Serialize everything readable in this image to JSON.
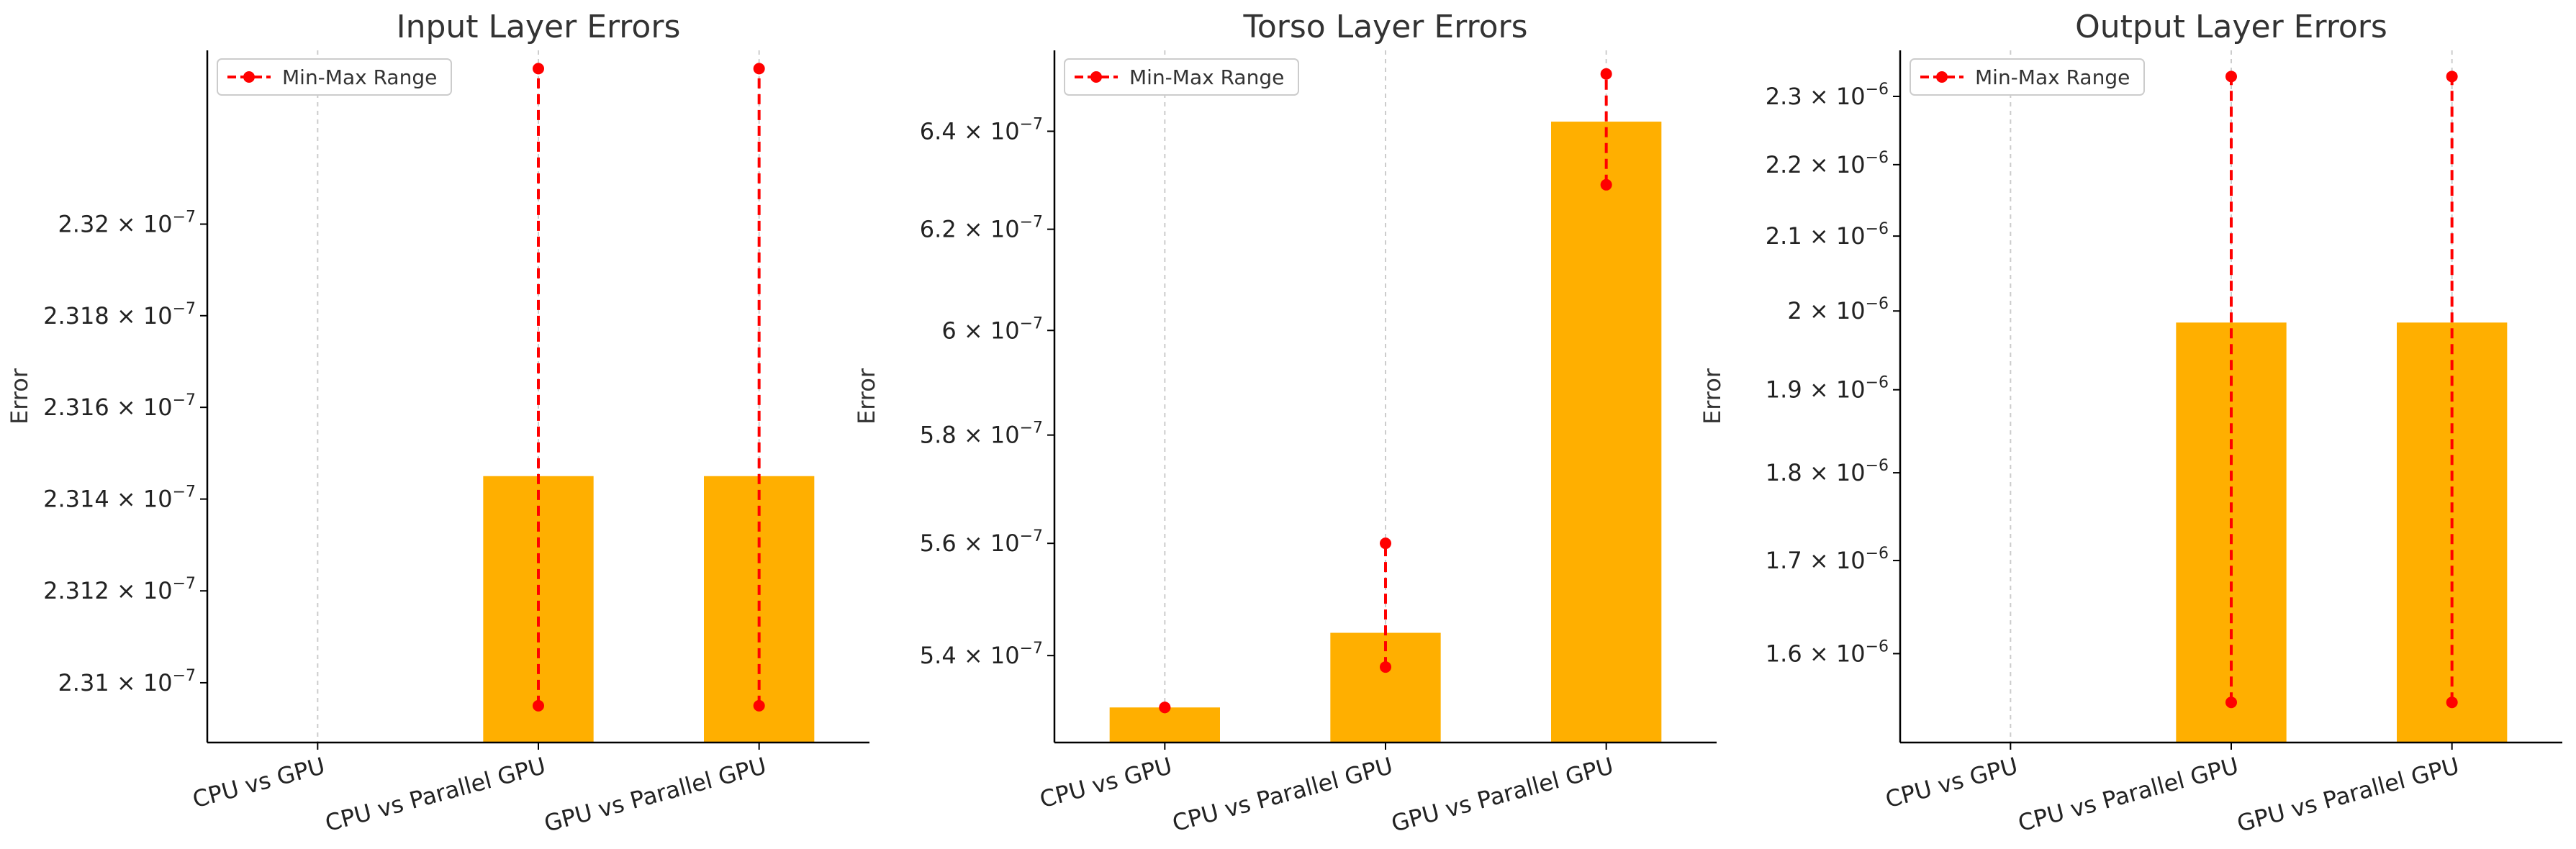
{
  "chart_data": [
    {
      "type": "bar",
      "title": "Input Layer Errors",
      "ylabel": "Error",
      "categories": [
        "CPU vs GPU",
        "CPU vs Parallel GPU",
        "GPU vs Parallel GPU"
      ],
      "values": [
        null,
        2.3145e-07,
        2.3145e-07
      ],
      "range": [
        null,
        [
          2.3095e-07,
          2.3234e-07
        ],
        [
          2.3095e-07,
          2.3234e-07
        ]
      ],
      "yscale": "log",
      "ylim": [
        2.3087e-07,
        2.3238e-07
      ],
      "yticks": [
        {
          "value": 2.31e-07,
          "mantissa": "2.31",
          "exponent": "−7"
        },
        {
          "value": 2.312e-07,
          "mantissa": "2.312",
          "exponent": "−7"
        },
        {
          "value": 2.314e-07,
          "mantissa": "2.314",
          "exponent": "−7"
        },
        {
          "value": 2.316e-07,
          "mantissa": "2.316",
          "exponent": "−7"
        },
        {
          "value": 2.318e-07,
          "mantissa": "2.318",
          "exponent": "−7"
        },
        {
          "value": 2.32e-07,
          "mantissa": "2.32",
          "exponent": "−7"
        }
      ],
      "legend": {
        "label": "Min-Max Range",
        "position": "upper-left"
      },
      "grid": "vertical-dashed"
    },
    {
      "type": "bar",
      "title": "Torso Layer Errors",
      "ylabel": "Error",
      "categories": [
        "CPU vs GPU",
        "CPU vs Parallel GPU",
        "GPU vs Parallel GPU"
      ],
      "values": [
        5.31e-07,
        5.44e-07,
        6.42e-07
      ],
      "range": [
        [
          5.31e-07,
          5.31e-07
        ],
        [
          5.38e-07,
          5.6e-07
        ],
        [
          6.29e-07,
          6.52e-07
        ]
      ],
      "yscale": "log",
      "ylim": [
        5.25e-07,
        6.57e-07
      ],
      "yticks": [
        {
          "value": 5.4e-07,
          "mantissa": "5.4",
          "exponent": "−7"
        },
        {
          "value": 5.6e-07,
          "mantissa": "5.6",
          "exponent": "−7"
        },
        {
          "value": 5.8e-07,
          "mantissa": "5.8",
          "exponent": "−7"
        },
        {
          "value": 6e-07,
          "mantissa": "6",
          "exponent": "−7"
        },
        {
          "value": 6.2e-07,
          "mantissa": "6.2",
          "exponent": "−7"
        },
        {
          "value": 6.4e-07,
          "mantissa": "6.4",
          "exponent": "−7"
        }
      ],
      "legend": {
        "label": "Min-Max Range",
        "position": "upper-left"
      },
      "grid": "vertical-dashed"
    },
    {
      "type": "bar",
      "title": "Output Layer Errors",
      "ylabel": "Error",
      "categories": [
        "CPU vs GPU",
        "CPU vs Parallel GPU",
        "GPU vs Parallel GPU"
      ],
      "values": [
        null,
        1.985e-06,
        1.985e-06
      ],
      "range": [
        null,
        [
          1.55e-06,
          2.33e-06
        ],
        [
          1.55e-06,
          2.33e-06
        ]
      ],
      "yscale": "log",
      "ylim": [
        1.51e-06,
        2.37e-06
      ],
      "yticks": [
        {
          "value": 1.6e-06,
          "mantissa": "1.6",
          "exponent": "−6"
        },
        {
          "value": 1.7e-06,
          "mantissa": "1.7",
          "exponent": "−6"
        },
        {
          "value": 1.8e-06,
          "mantissa": "1.8",
          "exponent": "−6"
        },
        {
          "value": 1.9e-06,
          "mantissa": "1.9",
          "exponent": "−6"
        },
        {
          "value": 2e-06,
          "mantissa": "2",
          "exponent": "−6"
        },
        {
          "value": 2.1e-06,
          "mantissa": "2.1",
          "exponent": "−6"
        },
        {
          "value": 2.2e-06,
          "mantissa": "2.2",
          "exponent": "−6"
        },
        {
          "value": 2.3e-06,
          "mantissa": "2.3",
          "exponent": "−6"
        }
      ],
      "legend": {
        "label": "Min-Max Range",
        "position": "upper-left"
      },
      "grid": "vertical-dashed"
    }
  ],
  "colors": {
    "bar": "#ffaf00",
    "range": "#ff0000",
    "grid": "#cccccc",
    "axis": "#000000"
  }
}
